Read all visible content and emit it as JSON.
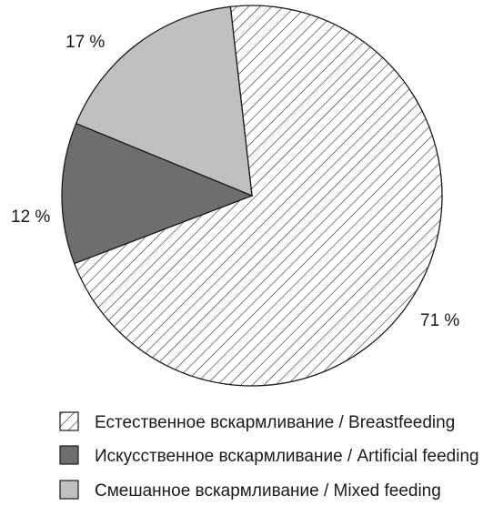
{
  "chart_data": {
    "type": "pie",
    "slices": [
      {
        "label": "Естественное вскармливание / Breastfeeding",
        "value": 71,
        "value_label": "71 %",
        "fill": "hatch"
      },
      {
        "label": "Искусственное вскармливание / Artificial feeding",
        "value": 12,
        "value_label": "12 %",
        "fill": "#6e6e6e"
      },
      {
        "label": "Смешанное вскармливание / Mixed feeding",
        "value": 17,
        "value_label": "17 %",
        "fill": "#c0c0c0"
      }
    ],
    "legend_position": "bottom"
  }
}
